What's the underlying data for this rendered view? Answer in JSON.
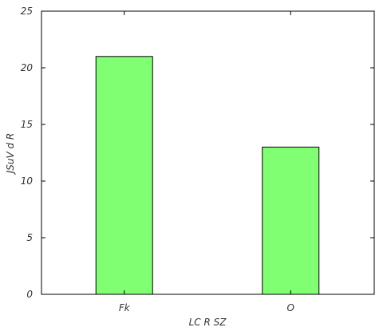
{
  "chart_data": {
    "type": "bar",
    "categories": [
      "Fk",
      "O"
    ],
    "values": [
      21,
      13
    ],
    "xlabel": "LC R SZ",
    "ylabel": "JSuV  d R",
    "ylim": [
      0,
      25
    ],
    "yticks": [
      0,
      5,
      10,
      15,
      20,
      25
    ],
    "grid": false,
    "bar_color": "#80ff73",
    "bar_edge_color": "#000000"
  }
}
